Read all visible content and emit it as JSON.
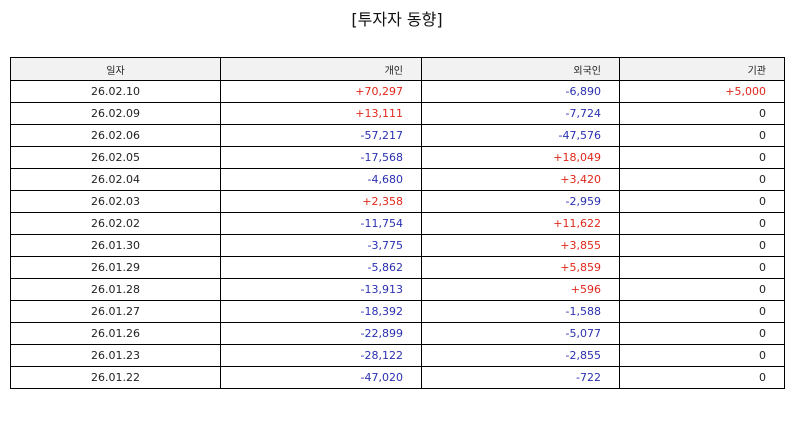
{
  "title": "[투자자 동향]",
  "columns": [
    "일자",
    "개인",
    "외국인",
    "기관"
  ],
  "colors": {
    "positive": "#e0271b",
    "negative": "#2a2fb0",
    "header_bg": "#f2f2f2"
  },
  "rows": [
    [
      "26.02.10",
      "+70,297",
      "-6,890",
      "+5,000"
    ],
    [
      "26.02.09",
      "+13,111",
      "-7,724",
      "0"
    ],
    [
      "26.02.06",
      "-57,217",
      "-47,576",
      "0"
    ],
    [
      "26.02.05",
      "-17,568",
      "+18,049",
      "0"
    ],
    [
      "26.02.04",
      "-4,680",
      "+3,420",
      "0"
    ],
    [
      "26.02.03",
      "+2,358",
      "-2,959",
      "0"
    ],
    [
      "26.02.02",
      "-11,754",
      "+11,622",
      "0"
    ],
    [
      "26.01.30",
      "-3,775",
      "+3,855",
      "0"
    ],
    [
      "26.01.29",
      "-5,862",
      "+5,859",
      "0"
    ],
    [
      "26.01.28",
      "-13,913",
      "+596",
      "0"
    ],
    [
      "26.01.27",
      "-18,392",
      "-1,588",
      "0"
    ],
    [
      "26.01.26",
      "-22,899",
      "-5,077",
      "0"
    ],
    [
      "26.01.23",
      "-28,122",
      "-2,855",
      "0"
    ],
    [
      "26.01.22",
      "-47,020",
      "-722",
      "0"
    ]
  ]
}
